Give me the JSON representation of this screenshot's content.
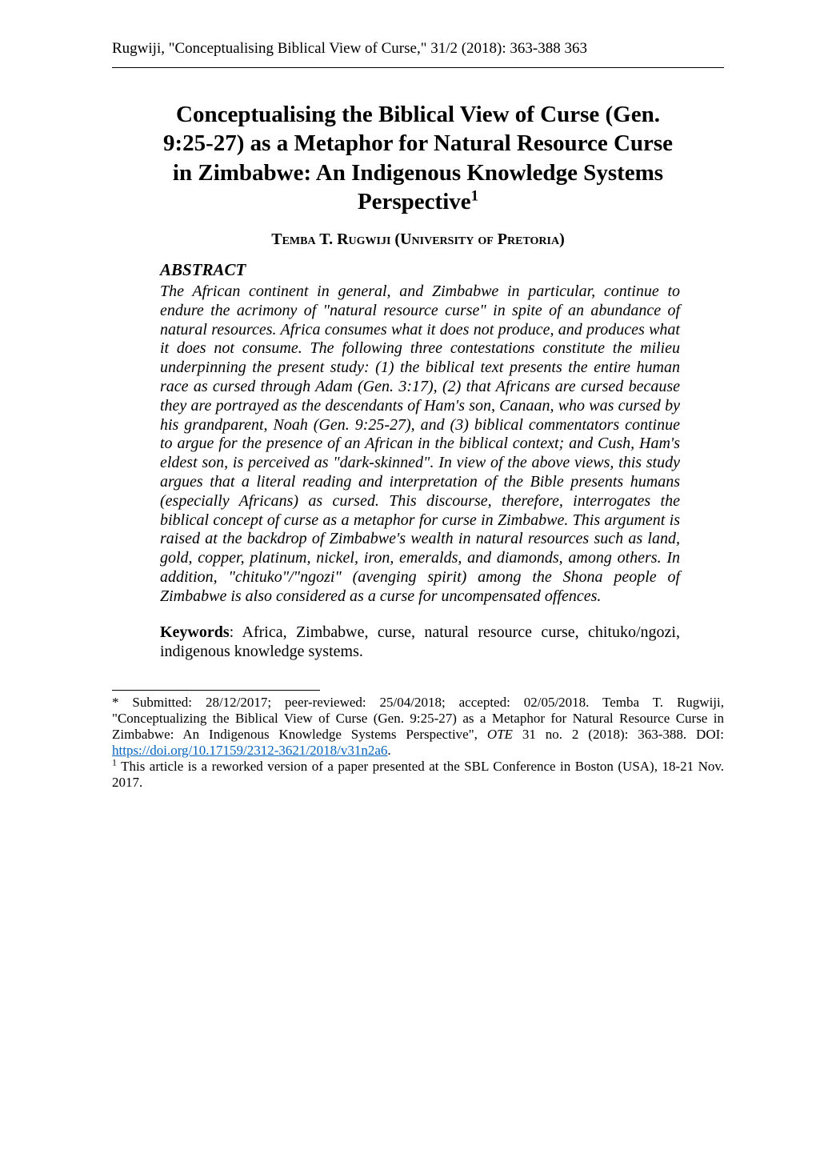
{
  "runningHeader": {
    "text": "Rugwiji, \"Conceptualising Biblical View of Curse,\" 31/2 (2018): 363-388   363"
  },
  "title": {
    "line1": "Conceptualising the Biblical View of Curse (Gen.",
    "line2": "9:25-27) as a Metaphor for Natural Resource Curse",
    "line3": "in Zimbabwe: An Indigenous Knowledge Systems",
    "line4": "Perspective",
    "superscript": "1"
  },
  "author": {
    "name": "Temba T. Rugwiji",
    "affiliation_open": "(",
    "affiliation": "University of Pretoria",
    "affiliation_close": ")"
  },
  "abstract": {
    "heading": "ABSTRACT",
    "body": "The African continent in general, and Zimbabwe in particular, continue to endure the acrimony of \"natural resource curse\" in spite of an abundance of natural resources. Africa consumes what it does not produce, and produces what it does not consume. The following three contestations constitute the milieu underpinning the present study: (1) the biblical text presents the entire human race as cursed through Adam (Gen. 3:17), (2) that Africans are cursed because they are portrayed as the descendants of Ham's son, Canaan, who was cursed by his grandparent, Noah (Gen. 9:25-27), and (3) biblical commentators continue to argue for the presence of an African in the biblical context; and Cush, Ham's eldest son, is perceived as \"dark-skinned\". In view of the above views, this study argues that a literal reading and interpretation of the Bible presents humans (especially Africans) as cursed. This discourse, therefore, interrogates the biblical concept of curse as a metaphor for curse in Zimbabwe. This argument is raised at the backdrop of Zimbabwe's wealth in natural resources such as land, gold, copper, platinum, nickel, iron, emeralds, and diamonds, among others. In addition, \"chituko\"/\"ngozi\" (avenging spirit) among the Shona people of Zimbabwe is also considered as a curse for uncompensated offences."
  },
  "keywords": {
    "label": "Keywords",
    "text": ": Africa, Zimbabwe, curse, natural resource curse, chituko/ngozi, indigenous knowledge systems."
  },
  "footnotes": {
    "entry1_pre": "*   Submitted: 28/12/2017; peer-reviewed: 25/04/2018; accepted: 02/05/2018. Temba T. Rugwiji, \"Conceptualizing the Biblical View of Curse (Gen. 9:25-27) as a Metaphor for Natural Resource Curse in Zimbabwe: An Indigenous Knowledge Systems Perspective\", ",
    "entry1_ital": "OTE",
    "entry1_mid": " 31 no. 2 (2018): 363-388. DOI: ",
    "doi_text": "https://doi.org/10.17159/2312-3621/2018/v31n2a6",
    "entry1_end": ".",
    "entry2_marker": "1",
    "entry2_text": "   This article is a reworked version of a paper presented at the SBL Conference in Boston (USA), 18-21 Nov. 2017."
  }
}
